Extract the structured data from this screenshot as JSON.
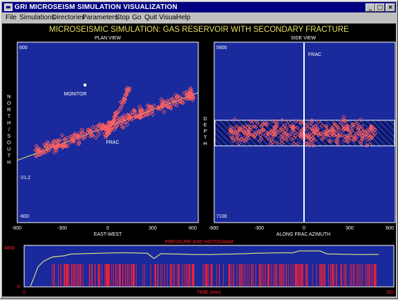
{
  "window": {
    "title": "GRI MICROSEISM SIMULATION VISUALIZATION",
    "icon": "app-icon",
    "controls": {
      "minimize": "_",
      "maximize": "□",
      "close": "×"
    }
  },
  "menu": [
    {
      "label": "File"
    },
    {
      "label": "Simulations"
    },
    {
      "label": "Directories"
    },
    {
      "label": "Parameters"
    },
    {
      "label": "Stop"
    },
    {
      "label": "Go"
    },
    {
      "label": "Quit Visual"
    },
    {
      "label": "Help"
    }
  ],
  "main_title": "MICROSEISMIC SIMULATION: GAS RESERVOIR WITH SECONDARY FRACTURE",
  "colors": {
    "plot_bg": "#1a2a9c",
    "title": "#e8e060",
    "point": "#ff6060",
    "hist": "#ff2030",
    "curve": "#ffff80"
  },
  "plan_view": {
    "title": "PLAN VIEW",
    "ytop": "600",
    "ymid": "-21.2",
    "ybot": "-600",
    "xticks": [
      "-600",
      "-300",
      "0",
      "300",
      "600"
    ],
    "xlabel": "EAST-WEST",
    "ylabel": "NORTH/SOUTH",
    "monitor_label": "MONITOR",
    "frac_label": "FRAC"
  },
  "side_view": {
    "title": "SIDE VIEW",
    "ytop": "5900",
    "ybot": "7100",
    "xticks": [
      "-600",
      "-300",
      "0",
      "300",
      "600"
    ],
    "xlabel": "ALONG FRAC AZIMUTH",
    "ylabel": "DEPTH",
    "frac_label": "FRAC"
  },
  "histogram": {
    "title": "PRESSURE AND HISTOGRAM",
    "ytop": "4800",
    "ybot": "0",
    "xleft": "0",
    "xright": "261",
    "xlabel": "TIME (min)"
  }
}
